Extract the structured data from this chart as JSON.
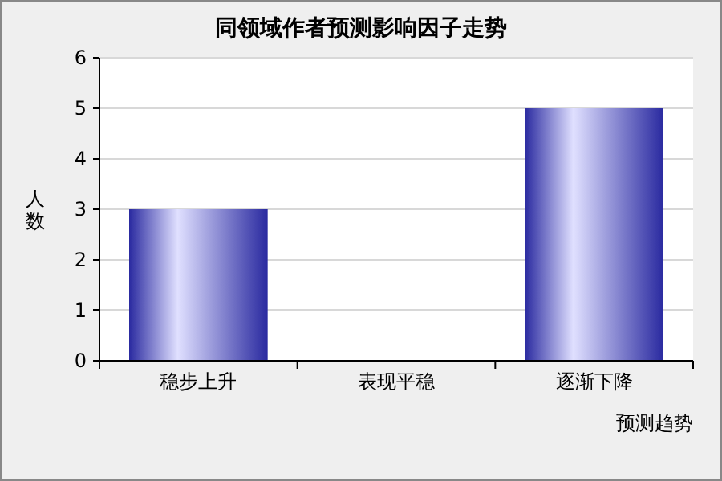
{
  "chart_data": {
    "type": "bar",
    "title": "同领域作者预测影响因子走势",
    "xlabel": "预测趋势",
    "ylabel": "人数",
    "categories": [
      "稳步上升",
      "表现平稳",
      "逐渐下降"
    ],
    "values": [
      3,
      0,
      5
    ],
    "color": "#2a2aa0",
    "ylim": [
      0,
      6
    ],
    "yticks": [
      0,
      1,
      2,
      3,
      4,
      5,
      6
    ],
    "grid": "y"
  }
}
